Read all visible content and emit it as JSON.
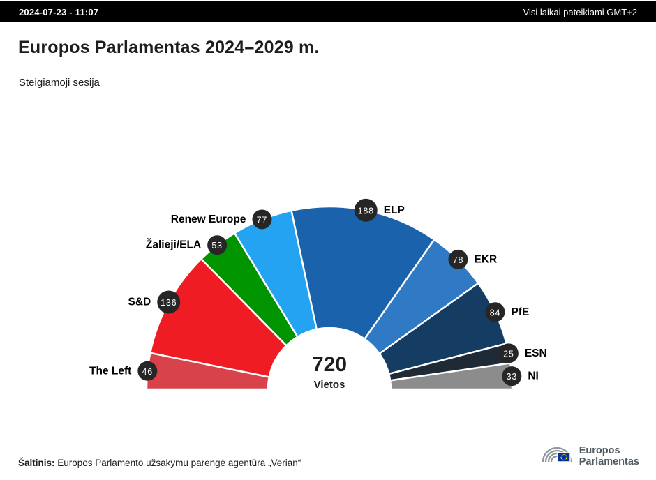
{
  "header": {
    "datetime": "2024-07-23 - 11:07",
    "timezone_note": "Visi laikai pateikiami GMT+2"
  },
  "title": "Europos Parlamentas 2024–2029 m.",
  "subtitle": "Steigiamoji sesija",
  "chart_data": {
    "type": "pie",
    "variant": "hemicycle",
    "title": "Europos Parlamentas 2024–2029 m.",
    "total": 720,
    "total_label": "720",
    "total_sublabel": "Vietos",
    "badge_color": "#262626",
    "segments": [
      {
        "label": "The Left",
        "value": 46,
        "color": "#d8424a"
      },
      {
        "label": "S&D",
        "value": 136,
        "color": "#ef1c24"
      },
      {
        "label": "Žalieji/ELA",
        "value": 53,
        "color": "#009400"
      },
      {
        "label": "Renew Europe",
        "value": 77,
        "color": "#23a3f2"
      },
      {
        "label": "ELP",
        "value": 188,
        "color": "#1a63ac"
      },
      {
        "label": "EKR",
        "value": 78,
        "color": "#3079c5"
      },
      {
        "label": "PfE",
        "value": 84,
        "color": "#153d63"
      },
      {
        "label": "ESN",
        "value": 25,
        "color": "#1f2a37"
      },
      {
        "label": "NI",
        "value": 33,
        "color": "#8c8c8c"
      }
    ]
  },
  "footer": {
    "source_label": "Šaltinis:",
    "source_text": " Europos Parlamento užsakymu parengė agentūra „Verian“"
  },
  "logo": {
    "line1": "Europos",
    "line2": "Parlamentas"
  }
}
